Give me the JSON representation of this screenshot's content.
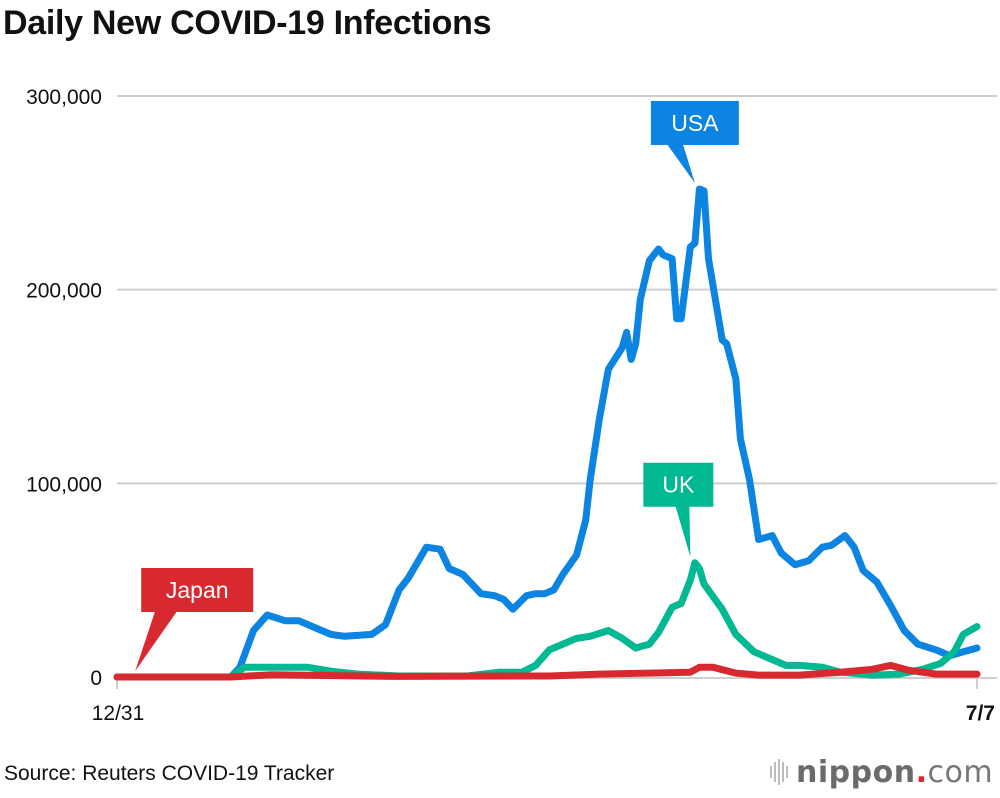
{
  "chart_data": {
    "type": "line",
    "title": "Daily New COVID-19 Infections",
    "xlabel": "",
    "ylabel": "",
    "x_range_days": [
      0,
      189
    ],
    "x_ticks": [
      {
        "day": 0,
        "label": "12/31"
      },
      {
        "day": 189,
        "label": "7/7"
      }
    ],
    "ylim": [
      0,
      300000
    ],
    "y_ticks": [
      {
        "value": 0,
        "label": "0"
      },
      {
        "value": 100000,
        "label": "100,000"
      },
      {
        "value": 200000,
        "label": "200,000"
      },
      {
        "value": 300000,
        "label": "300,000"
      }
    ],
    "grid": true,
    "x_unit": "days since 12/31",
    "series": [
      {
        "name": "USA",
        "label": "USA",
        "color": "#0c84e2",
        "callout_day": 127,
        "callout_value": 252000,
        "points": [
          [
            0,
            0
          ],
          [
            25,
            0
          ],
          [
            27,
            5000
          ],
          [
            30,
            24000
          ],
          [
            33,
            32000
          ],
          [
            37,
            29000
          ],
          [
            40,
            29000
          ],
          [
            44,
            25000
          ],
          [
            47,
            22000
          ],
          [
            50,
            21000
          ],
          [
            56,
            22000
          ],
          [
            59,
            27000
          ],
          [
            62,
            45000
          ],
          [
            64,
            51000
          ],
          [
            68,
            67000
          ],
          [
            71,
            66000
          ],
          [
            73,
            56000
          ],
          [
            76,
            53000
          ],
          [
            80,
            43000
          ],
          [
            83,
            42000
          ],
          [
            85,
            40000
          ],
          [
            87,
            35000
          ],
          [
            90,
            42000
          ],
          [
            92,
            43000
          ],
          [
            94,
            43000
          ],
          [
            96,
            45000
          ],
          [
            98,
            53000
          ],
          [
            101,
            63000
          ],
          [
            103,
            81000
          ],
          [
            104,
            102000
          ],
          [
            106,
            133000
          ],
          [
            108,
            159000
          ],
          [
            111,
            170000
          ],
          [
            112,
            178000
          ],
          [
            113,
            164000
          ],
          [
            114,
            172000
          ],
          [
            115,
            195000
          ],
          [
            117,
            215000
          ],
          [
            118,
            218000
          ],
          [
            119,
            221000
          ],
          [
            120,
            218000
          ],
          [
            122,
            216000
          ],
          [
            123,
            185000
          ],
          [
            124,
            185000
          ],
          [
            126,
            222000
          ],
          [
            127,
            224000
          ],
          [
            128,
            252000
          ],
          [
            129,
            251000
          ],
          [
            130,
            216000
          ],
          [
            133,
            174000
          ],
          [
            134,
            172000
          ],
          [
            136,
            154000
          ],
          [
            137,
            123000
          ],
          [
            139,
            102000
          ],
          [
            141,
            71000
          ],
          [
            144,
            73000
          ],
          [
            146,
            64000
          ],
          [
            149,
            58000
          ],
          [
            152,
            60000
          ],
          [
            155,
            67000
          ],
          [
            157,
            68000
          ],
          [
            160,
            73000
          ],
          [
            162,
            67000
          ],
          [
            164,
            55000
          ],
          [
            167,
            49000
          ],
          [
            170,
            37000
          ],
          [
            173,
            24000
          ],
          [
            176,
            17000
          ],
          [
            180,
            14000
          ],
          [
            183,
            11000
          ],
          [
            186,
            13000
          ],
          [
            189,
            15000
          ]
        ]
      },
      {
        "name": "UK",
        "label": "UK",
        "color": "#00b892",
        "callout_day": 126,
        "callout_value": 59000,
        "points": [
          [
            0,
            0
          ],
          [
            25,
            0
          ],
          [
            28,
            5000
          ],
          [
            32,
            5000
          ],
          [
            38,
            5000
          ],
          [
            42,
            5000
          ],
          [
            47,
            3000
          ],
          [
            53,
            1500
          ],
          [
            62,
            500
          ],
          [
            77,
            500
          ],
          [
            84,
            2500
          ],
          [
            89,
            2500
          ],
          [
            92,
            6000
          ],
          [
            95,
            14000
          ],
          [
            98,
            17000
          ],
          [
            101,
            20000
          ],
          [
            104,
            21000
          ],
          [
            108,
            24000
          ],
          [
            111,
            20000
          ],
          [
            114,
            15000
          ],
          [
            117,
            17000
          ],
          [
            119,
            23000
          ],
          [
            122,
            36000
          ],
          [
            124,
            38000
          ],
          [
            126,
            50000
          ],
          [
            127,
            59000
          ],
          [
            128,
            56000
          ],
          [
            129,
            48000
          ],
          [
            133,
            35000
          ],
          [
            136,
            22000
          ],
          [
            140,
            13000
          ],
          [
            143,
            10000
          ],
          [
            147,
            6000
          ],
          [
            150,
            6000
          ],
          [
            155,
            5000
          ],
          [
            159,
            2500
          ],
          [
            166,
            1000
          ],
          [
            172,
            1500
          ],
          [
            177,
            4000
          ],
          [
            181,
            7000
          ],
          [
            184,
            13000
          ],
          [
            186,
            22000
          ],
          [
            189,
            26000
          ]
        ]
      },
      {
        "name": "Japan",
        "label": "Japan",
        "color": "#d7292f",
        "callout_day": 4,
        "callout_value": 0,
        "points": [
          [
            0,
            0
          ],
          [
            25,
            0
          ],
          [
            34,
            1200
          ],
          [
            50,
            600
          ],
          [
            62,
            300
          ],
          [
            88,
            500
          ],
          [
            95,
            500
          ],
          [
            106,
            1500
          ],
          [
            117,
            2000
          ],
          [
            126,
            2500
          ],
          [
            128,
            5000
          ],
          [
            131,
            5000
          ],
          [
            136,
            2000
          ],
          [
            141,
            1000
          ],
          [
            150,
            1000
          ],
          [
            159,
            2500
          ],
          [
            166,
            4000
          ],
          [
            170,
            6000
          ],
          [
            174,
            3500
          ],
          [
            180,
            1500
          ],
          [
            189,
            1500
          ]
        ]
      }
    ]
  },
  "footer": {
    "source": "Source: Reuters COVID-19 Tracker",
    "logo_main": "nippon",
    "logo_dot": ".",
    "logo_suffix": "com"
  }
}
